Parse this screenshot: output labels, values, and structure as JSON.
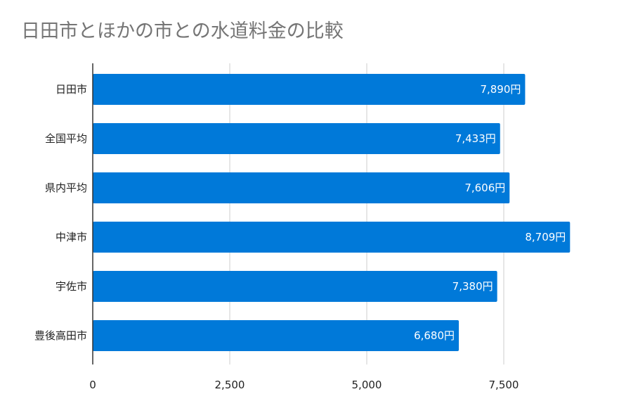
{
  "chart_data": {
    "type": "bar",
    "orientation": "horizontal",
    "title": "日田市とほかの市との水道料金の比較",
    "categories": [
      "日田市",
      "全国平均",
      "県内平均",
      "中津市",
      "宇佐市",
      "豊後高田市"
    ],
    "series": [
      {
        "values": [
          7890,
          7433,
          7606,
          8709,
          7380,
          6680
        ]
      }
    ],
    "data_labels": [
      "7,890円",
      "7,433円",
      "7,606円",
      "8,709円",
      "7,380円",
      "6,680円"
    ],
    "x_ticks": [
      "0",
      "2,500",
      "5,000",
      "7,500"
    ],
    "x_tick_values": [
      0,
      2500,
      5000,
      7500
    ],
    "xlim": [
      0,
      8750
    ],
    "grid": "vertical",
    "legend": "none",
    "bar_color": "#0079d9",
    "grid_color": "#cccccc",
    "axis_color": "#333333"
  }
}
